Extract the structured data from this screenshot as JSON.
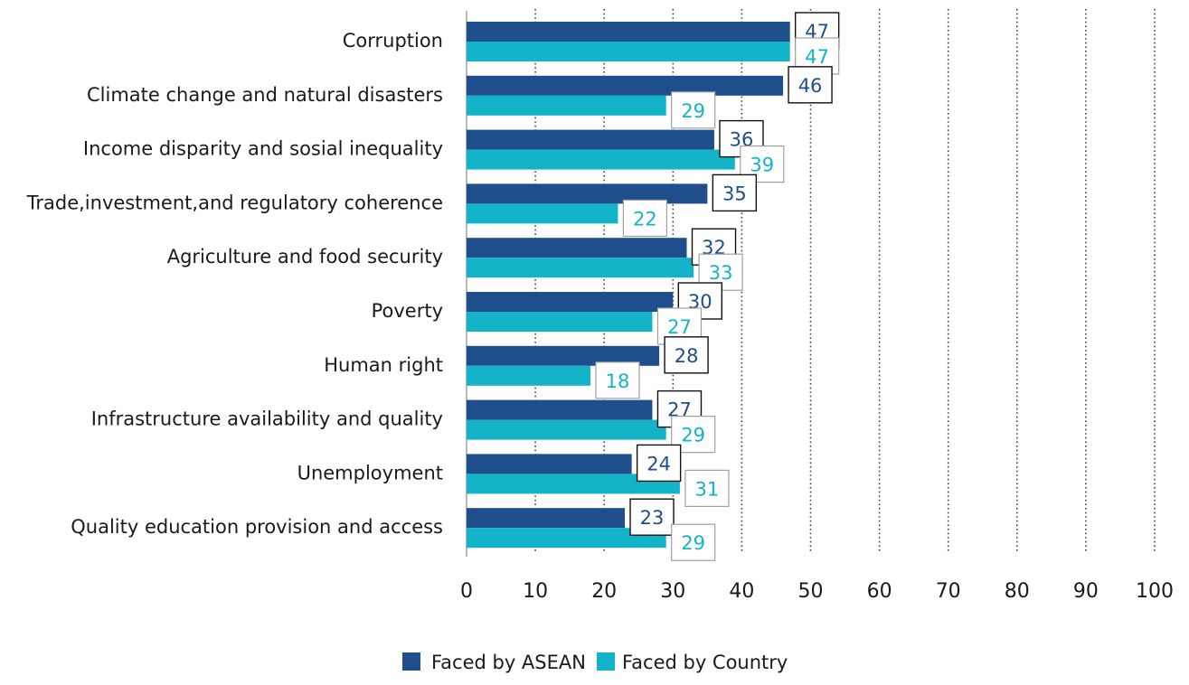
{
  "chart_data": {
    "type": "bar",
    "orientation": "horizontal",
    "categories": [
      "Corruption",
      "Climate change and natural disasters",
      "Income disparity and sosial inequality",
      "Trade,investment,and regulatory coherence",
      "Agriculture and food security",
      "Poverty",
      "Human right",
      "Infrastructure availability and quality",
      "Unemployment",
      "Quality education provision and access"
    ],
    "series": [
      {
        "name": "Faced by ASEAN",
        "color": "#1f4e8c",
        "values": [
          47,
          46,
          36,
          35,
          32,
          30,
          28,
          27,
          24,
          23
        ]
      },
      {
        "name": "Faced by Country",
        "color": "#14b4c8",
        "values": [
          47,
          29,
          39,
          22,
          33,
          27,
          18,
          29,
          31,
          29
        ]
      }
    ],
    "xlim": [
      0,
      100
    ],
    "xticks": [
      "0",
      "10",
      "20",
      "30",
      "40",
      "50",
      "60",
      "70",
      "80",
      "90",
      "100"
    ],
    "grid": "vertical dotted",
    "legend_position": "bottom-center",
    "title": "",
    "xlabel": "",
    "ylabel": ""
  }
}
